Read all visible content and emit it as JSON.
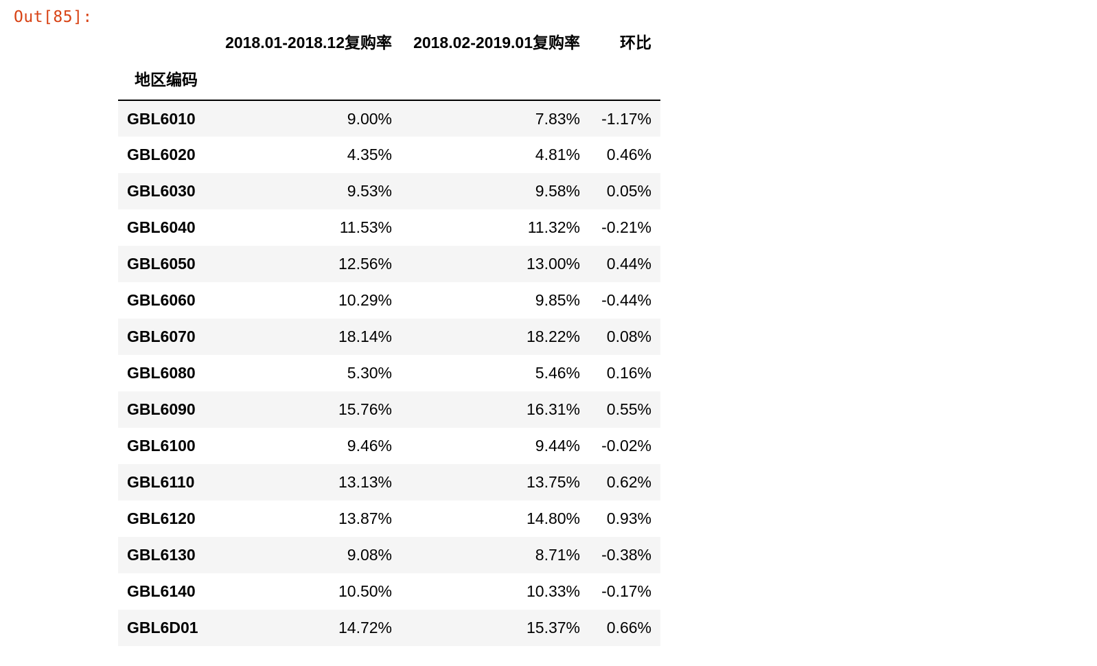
{
  "output_prompt": "Out[85]:",
  "table": {
    "index_name": "地区编码",
    "columns": [
      "2018.01-2018.12复购率",
      "2018.02-2019.01复购率",
      "环比"
    ],
    "rows": [
      {
        "index": "GBL6010",
        "values": [
          "9.00%",
          "7.83%",
          "-1.17%"
        ]
      },
      {
        "index": "GBL6020",
        "values": [
          "4.35%",
          "4.81%",
          "0.46%"
        ]
      },
      {
        "index": "GBL6030",
        "values": [
          "9.53%",
          "9.58%",
          "0.05%"
        ]
      },
      {
        "index": "GBL6040",
        "values": [
          "11.53%",
          "11.32%",
          "-0.21%"
        ]
      },
      {
        "index": "GBL6050",
        "values": [
          "12.56%",
          "13.00%",
          "0.44%"
        ]
      },
      {
        "index": "GBL6060",
        "values": [
          "10.29%",
          "9.85%",
          "-0.44%"
        ]
      },
      {
        "index": "GBL6070",
        "values": [
          "18.14%",
          "18.22%",
          "0.08%"
        ]
      },
      {
        "index": "GBL6080",
        "values": [
          "5.30%",
          "5.46%",
          "0.16%"
        ]
      },
      {
        "index": "GBL6090",
        "values": [
          "15.76%",
          "16.31%",
          "0.55%"
        ]
      },
      {
        "index": "GBL6100",
        "values": [
          "9.46%",
          "9.44%",
          "-0.02%"
        ]
      },
      {
        "index": "GBL6110",
        "values": [
          "13.13%",
          "13.75%",
          "0.62%"
        ]
      },
      {
        "index": "GBL6120",
        "values": [
          "13.87%",
          "14.80%",
          "0.93%"
        ]
      },
      {
        "index": "GBL6130",
        "values": [
          "9.08%",
          "8.71%",
          "-0.38%"
        ]
      },
      {
        "index": "GBL6140",
        "values": [
          "10.50%",
          "10.33%",
          "-0.17%"
        ]
      },
      {
        "index": "GBL6D01",
        "values": [
          "14.72%",
          "15.37%",
          "0.66%"
        ]
      }
    ]
  },
  "colors": {
    "prompt": "#d84315",
    "row_stripe": "#f5f5f5",
    "text": "#000000"
  }
}
